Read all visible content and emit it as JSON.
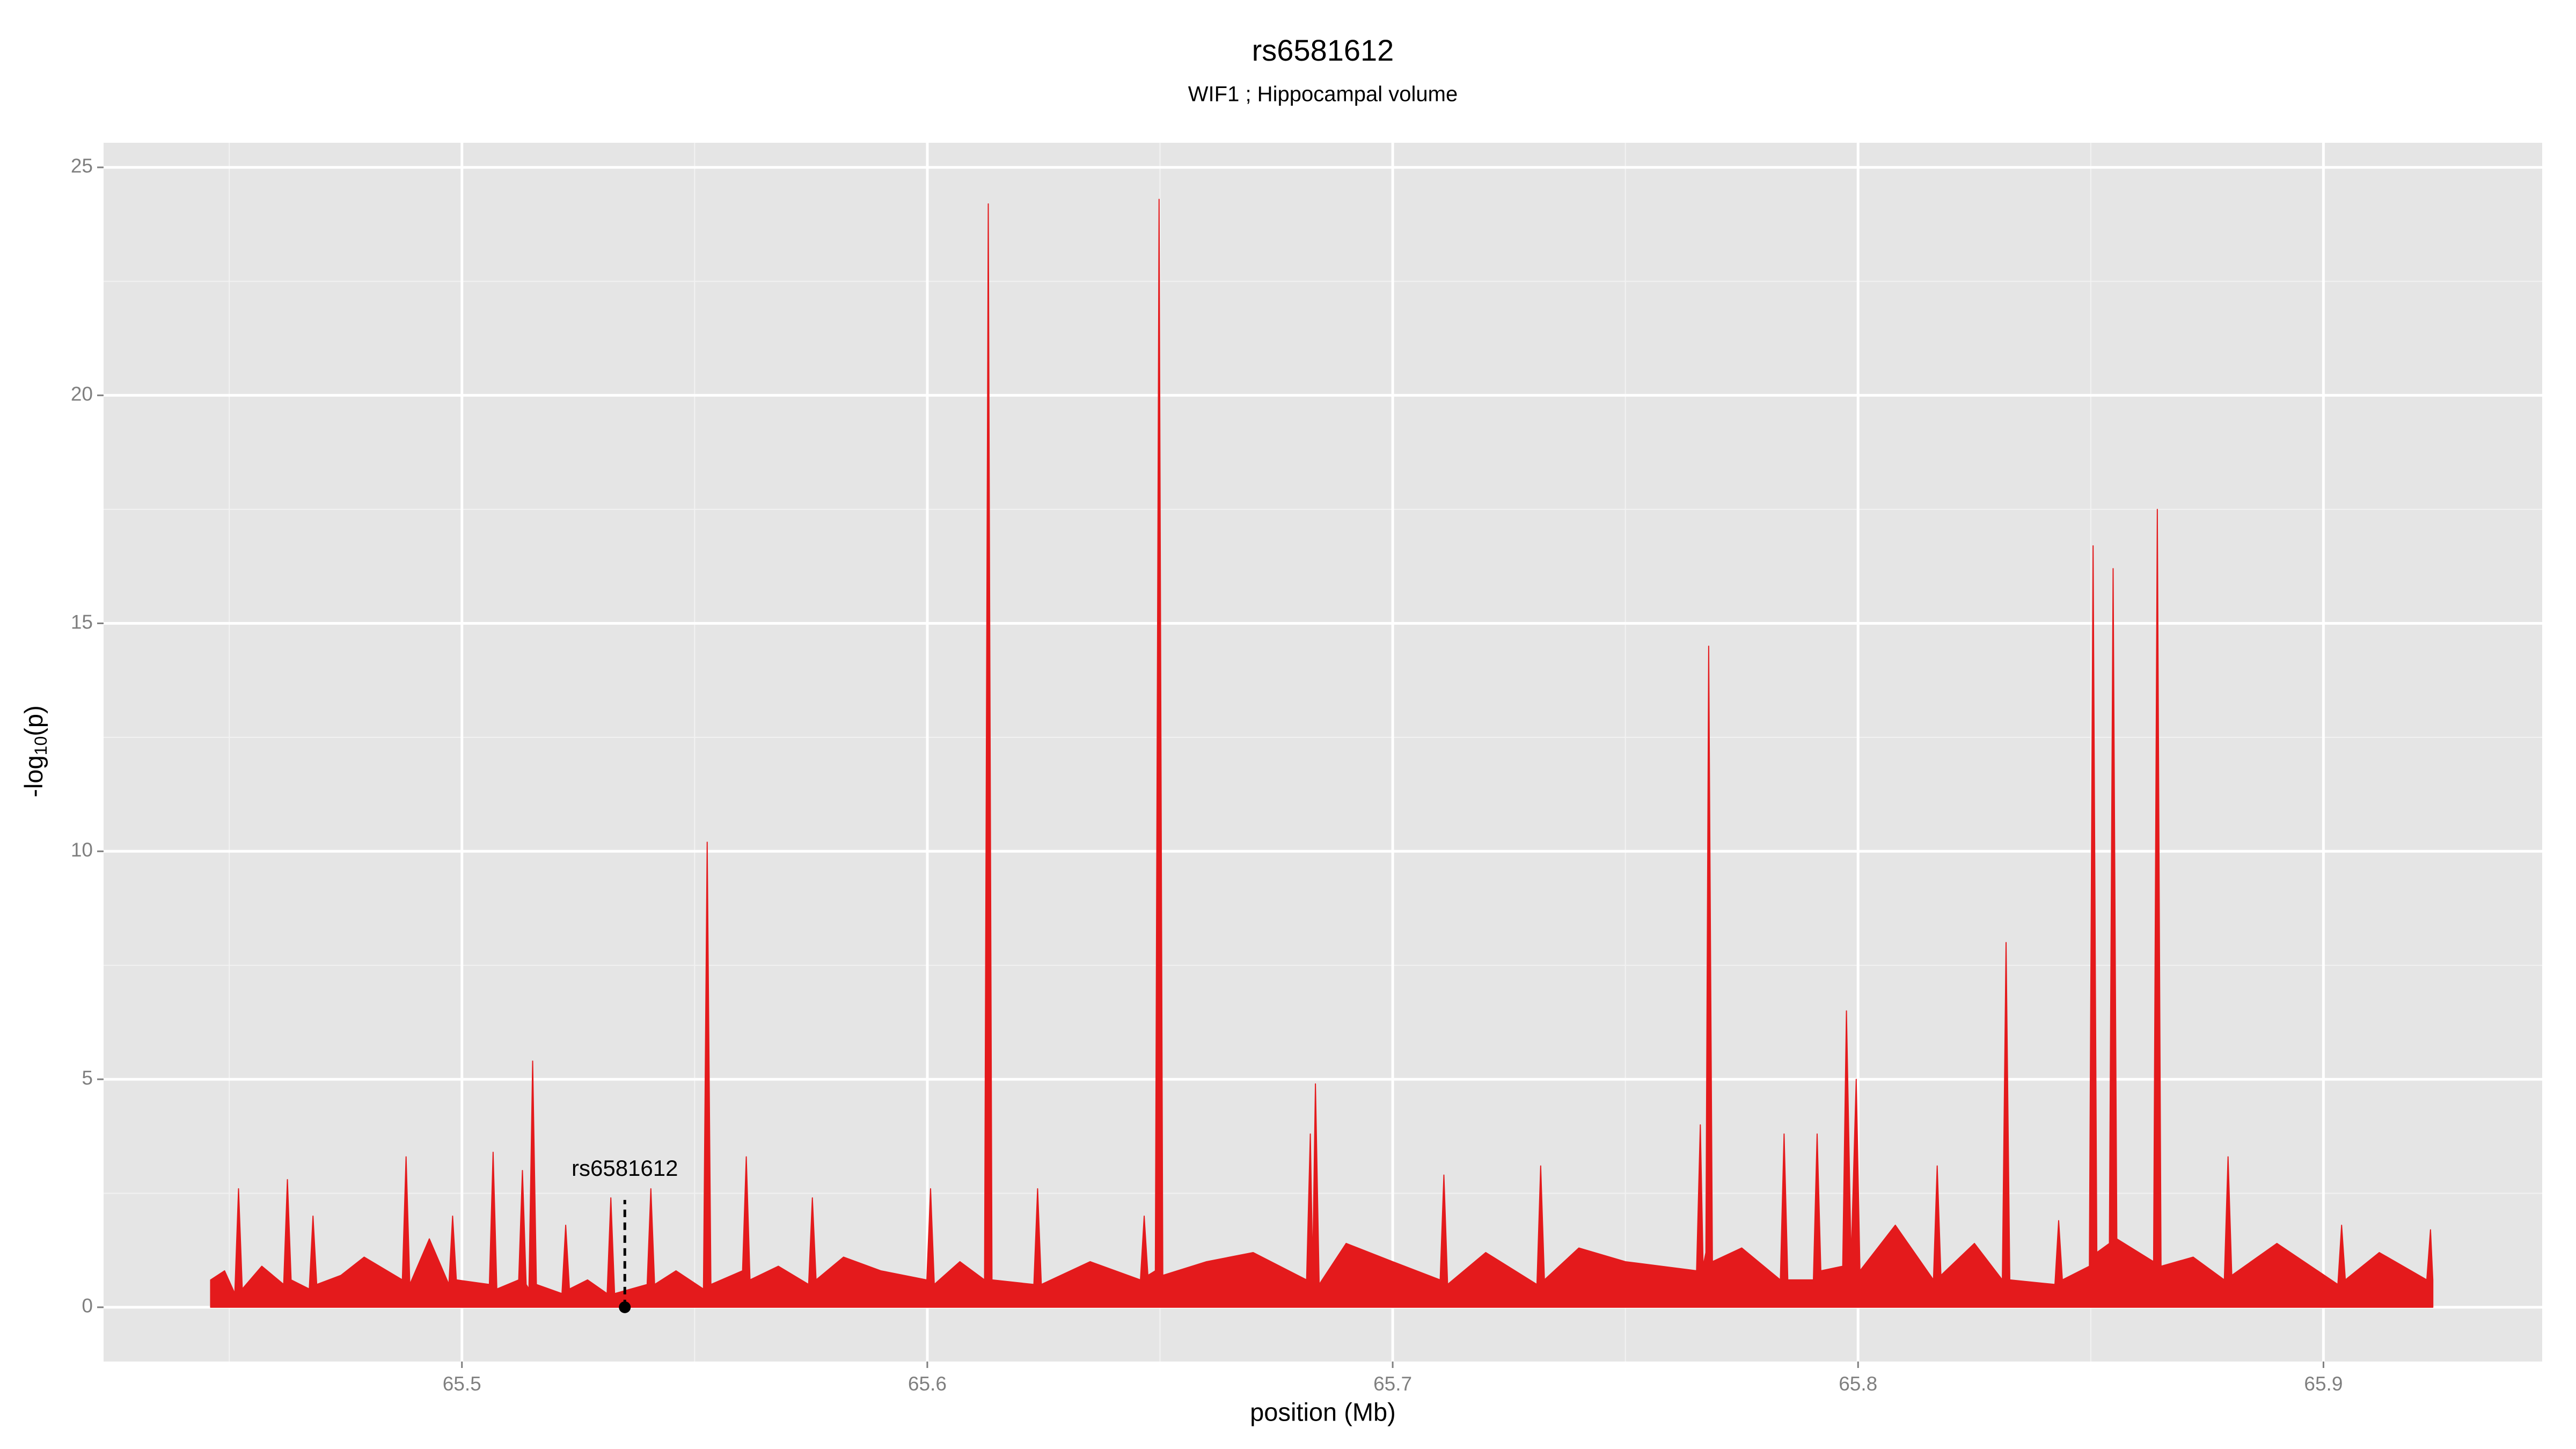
{
  "chart_data": {
    "type": "area",
    "title": "rs6581612",
    "subtitle": "WIF1 ; Hippocampal volume",
    "x_label": "position (Mb)",
    "y_label_parts": [
      "-log",
      "10",
      "(p)"
    ],
    "color": "#e41a1c",
    "grid": true,
    "xlim": [
      65.423,
      65.947
    ],
    "xticks": [
      65.5,
      65.6,
      65.7,
      65.8,
      65.9
    ],
    "ylim": [
      -1.19,
      25.54
    ],
    "yticks": [
      0,
      5,
      10,
      15,
      20,
      25
    ],
    "annotation": {
      "text": "rs6581612",
      "x": 65.535,
      "y": 0
    },
    "x": [
      65.446,
      65.449,
      65.4512,
      65.452,
      65.4528,
      65.457,
      65.4617,
      65.4625,
      65.4633,
      65.4672,
      65.468,
      65.4688,
      65.474,
      65.479,
      65.4872,
      65.488,
      65.4888,
      65.493,
      65.4972,
      65.498,
      65.4988,
      65.5059,
      65.5067,
      65.5075,
      65.5122,
      65.513,
      65.5138,
      65.5144,
      65.5152,
      65.516,
      65.5215,
      65.5223,
      65.5231,
      65.527,
      65.5312,
      65.532,
      65.5328,
      65.5398,
      65.5406,
      65.5414,
      65.546,
      65.5519,
      65.5527,
      65.5535,
      65.5603,
      65.5611,
      65.5619,
      65.568,
      65.5745,
      65.5753,
      65.5761,
      65.582,
      65.59,
      65.5999,
      65.6007,
      65.6015,
      65.607,
      65.6123,
      65.6131,
      65.6139,
      65.6229,
      65.6237,
      65.6245,
      65.635,
      65.6458,
      65.6466,
      65.6474,
      65.649,
      65.6498,
      65.6506,
      65.66,
      65.67,
      65.6815,
      65.6823,
      65.6828,
      65.6834,
      65.6842,
      65.69,
      65.7,
      65.7102,
      65.711,
      65.7118,
      65.72,
      65.731,
      65.7318,
      65.7326,
      65.74,
      65.75,
      65.7653,
      65.7661,
      65.7667,
      65.7673,
      65.7679,
      65.7687,
      65.775,
      65.7833,
      65.7841,
      65.7849,
      65.7904,
      65.7912,
      65.792,
      65.7967,
      65.7975,
      65.7985,
      65.7996,
      65.8004,
      65.808,
      65.8162,
      65.817,
      65.8178,
      65.825,
      65.831,
      65.8318,
      65.8326,
      65.8423,
      65.8431,
      65.8439,
      65.8497,
      65.8505,
      65.8513,
      65.854,
      65.8548,
      65.8556,
      65.8635,
      65.8643,
      65.8651,
      65.872,
      65.8787,
      65.8795,
      65.8803,
      65.89,
      65.9031,
      65.9039,
      65.9047,
      65.912,
      65.9222,
      65.923,
      65.9235
    ],
    "values": [
      0.6,
      0.8,
      0.3,
      2.6,
      0.4,
      0.9,
      0.5,
      2.8,
      0.6,
      0.4,
      2.0,
      0.5,
      0.7,
      1.1,
      0.6,
      3.3,
      0.5,
      1.5,
      0.5,
      2.0,
      0.6,
      0.5,
      3.4,
      0.4,
      0.6,
      3.0,
      0.5,
      0.4,
      5.4,
      0.5,
      0.3,
      1.8,
      0.4,
      0.6,
      0.3,
      2.4,
      0.3,
      0.5,
      2.6,
      0.5,
      0.8,
      0.4,
      10.2,
      0.5,
      0.8,
      3.3,
      0.6,
      0.9,
      0.5,
      2.4,
      0.6,
      1.1,
      0.8,
      0.6,
      2.6,
      0.5,
      1.0,
      0.6,
      24.2,
      0.6,
      0.5,
      2.6,
      0.5,
      1.0,
      0.6,
      2.0,
      0.7,
      0.8,
      24.3,
      0.7,
      1.0,
      1.2,
      0.6,
      3.8,
      0.8,
      4.9,
      0.5,
      1.4,
      1.0,
      0.6,
      2.9,
      0.5,
      1.2,
      0.5,
      3.1,
      0.6,
      1.3,
      1.0,
      0.8,
      4.0,
      0.9,
      1.2,
      14.5,
      1.0,
      1.3,
      0.6,
      3.8,
      0.6,
      0.6,
      3.8,
      0.8,
      0.9,
      6.5,
      1.0,
      5.0,
      0.8,
      1.8,
      0.6,
      3.1,
      0.7,
      1.4,
      0.6,
      8.0,
      0.6,
      0.5,
      1.9,
      0.6,
      0.9,
      16.7,
      1.2,
      1.4,
      16.2,
      1.5,
      1.0,
      17.5,
      0.9,
      1.1,
      0.6,
      3.3,
      0.7,
      1.4,
      0.5,
      1.8,
      0.6,
      1.2,
      0.6,
      1.7,
      0.6
    ]
  }
}
